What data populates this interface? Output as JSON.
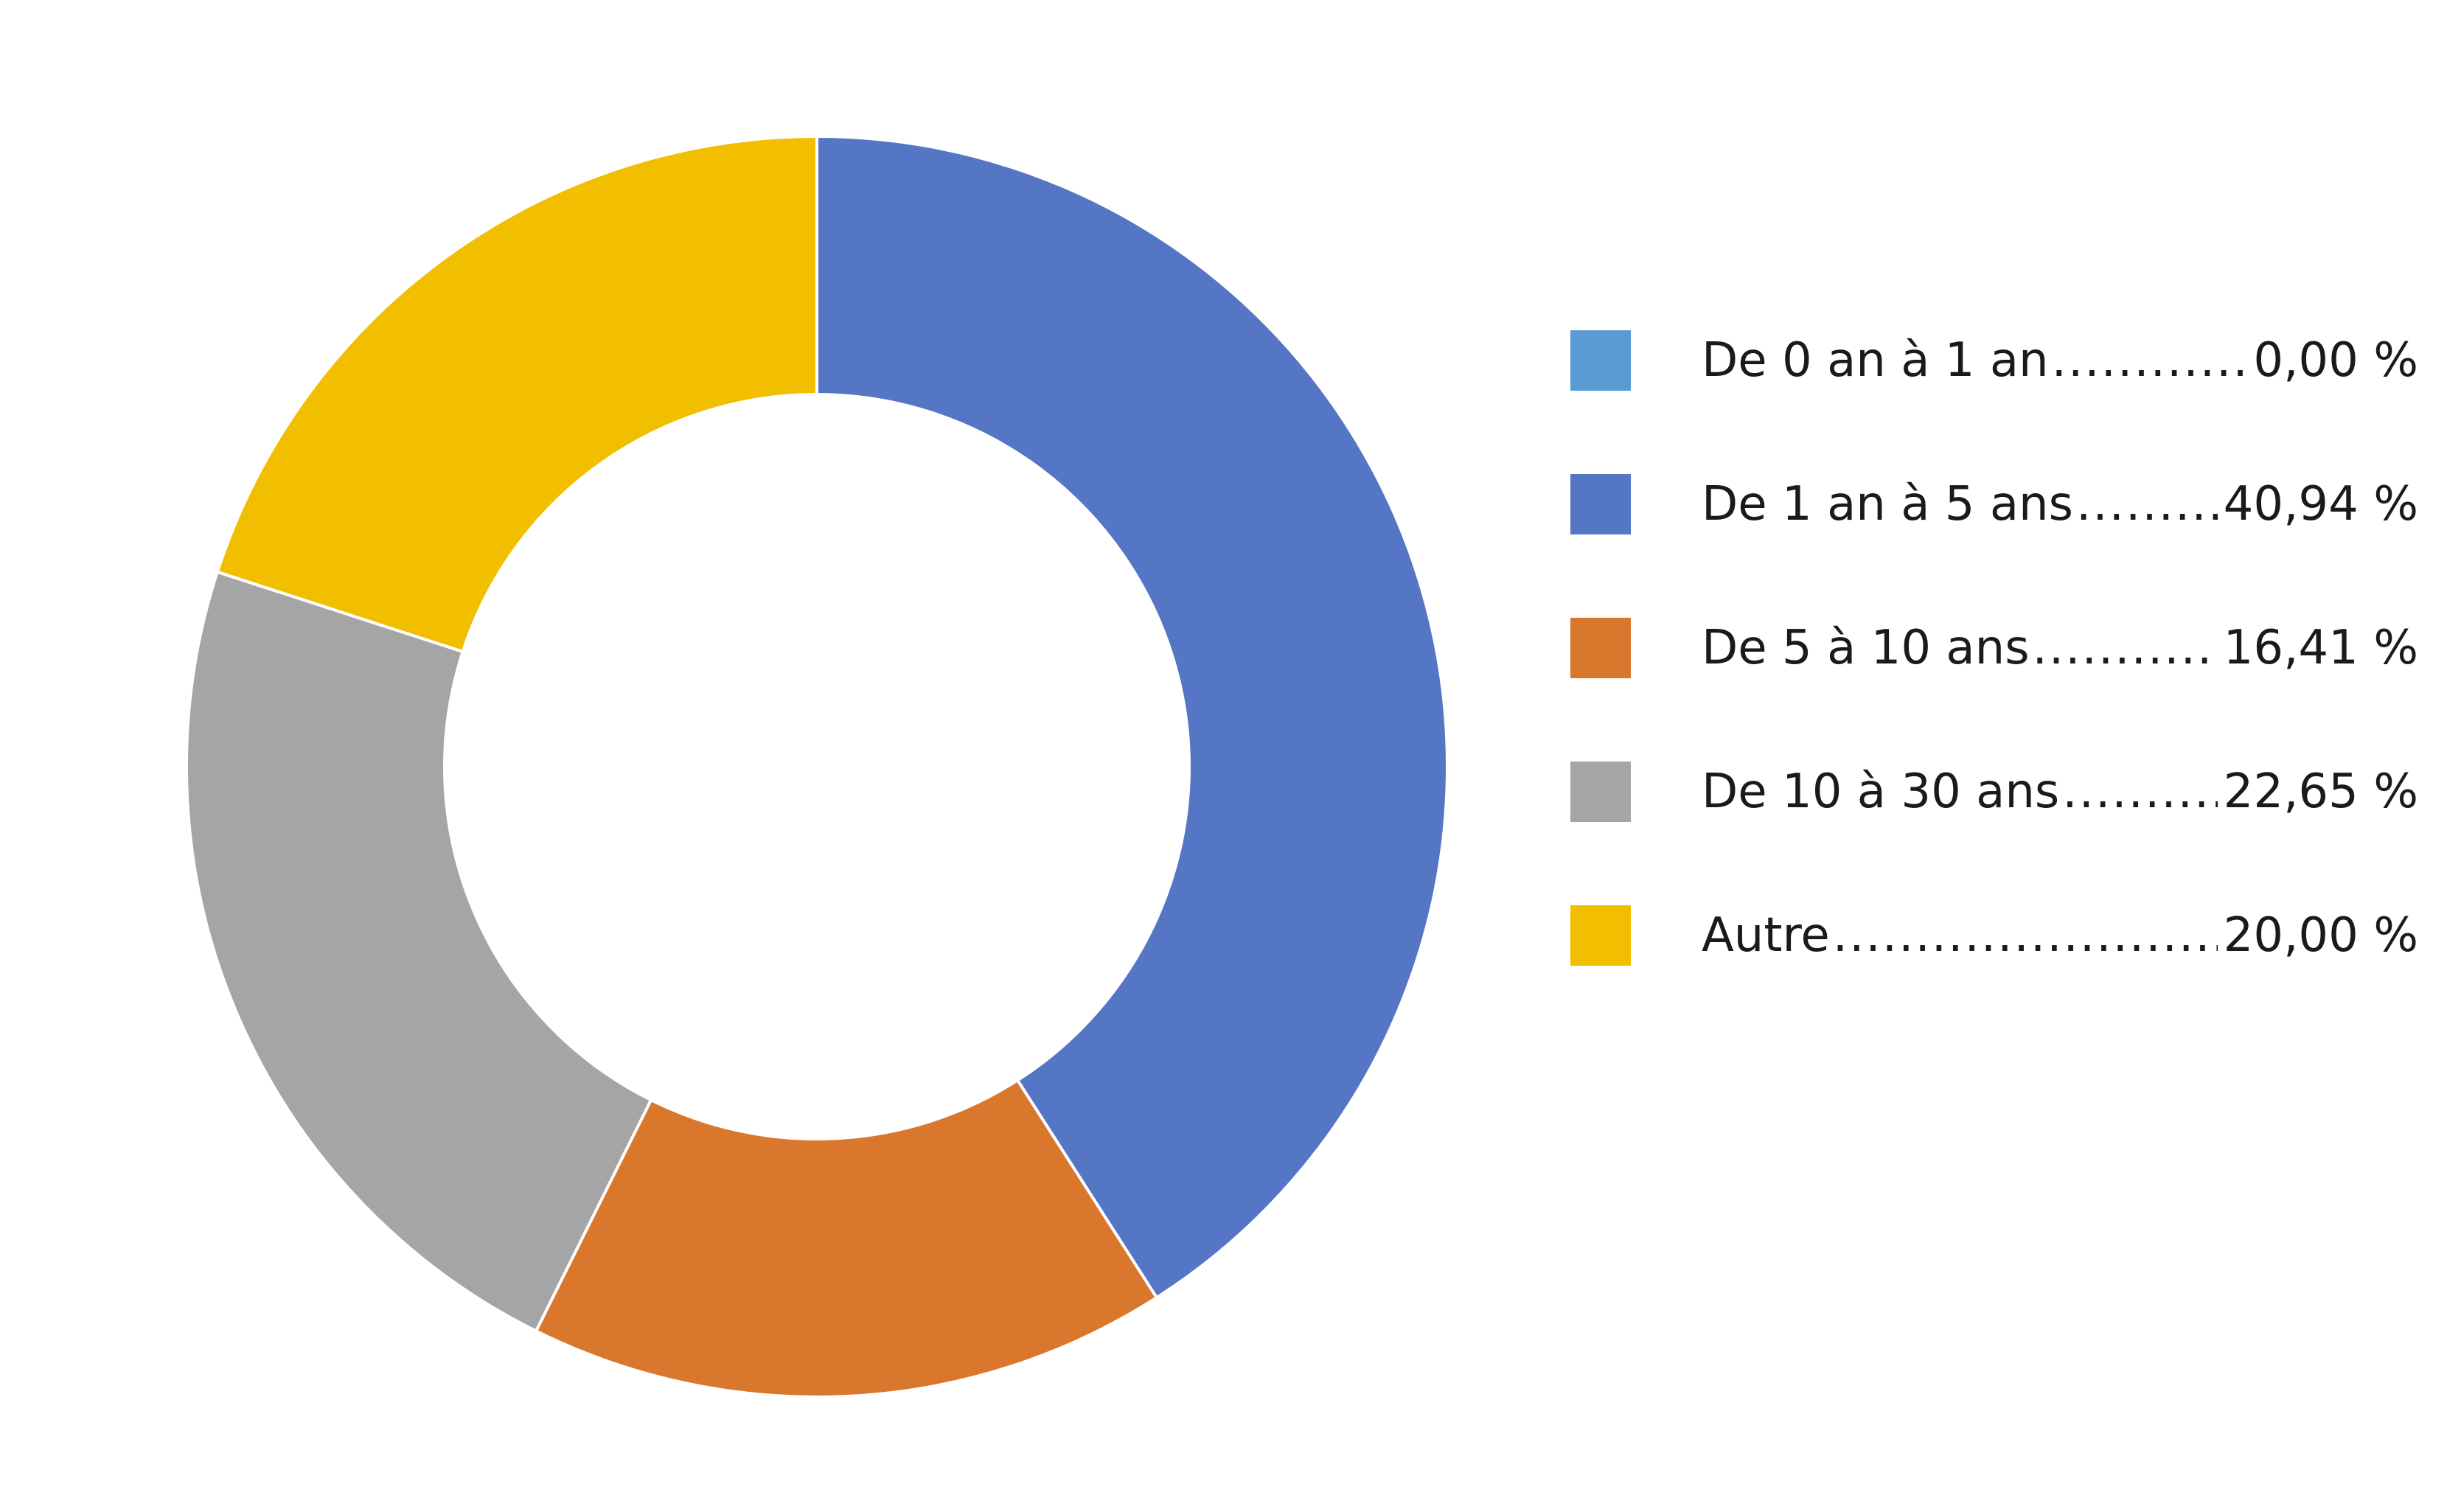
{
  "chart_data": {
    "type": "pie",
    "variant": "donut",
    "title": "",
    "legend_position": "right",
    "slices": [
      {
        "label": "De 0 an à 1 an",
        "value": 0.0,
        "value_text": "0,00 %",
        "color": "#5B9BD5"
      },
      {
        "label": "De 1 an à 5 ans",
        "value": 40.94,
        "value_text": "40,94 %",
        "color": "#5575C5"
      },
      {
        "label": "De 5 à 10 ans",
        "value": 16.41,
        "value_text": "16,41 %",
        "color": "#D9782D"
      },
      {
        "label": "De 10 à 30 ans",
        "value": 22.65,
        "value_text": "22,65 %",
        "color": "#A5A5A5"
      },
      {
        "label": "Autre",
        "value": 20.0,
        "value_text": "20,00 %",
        "color": "#F2BE00"
      }
    ]
  }
}
